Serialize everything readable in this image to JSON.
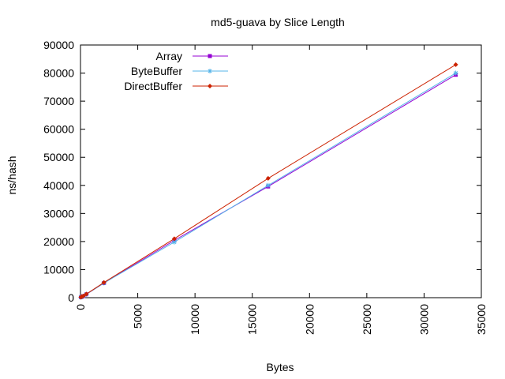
{
  "chart_data": {
    "type": "line",
    "title": "md5-guava by Slice Length",
    "xlabel": "Bytes",
    "ylabel": "ns/hash",
    "xlim": [
      0,
      35000
    ],
    "ylim": [
      0,
      90000
    ],
    "xticks": [
      0,
      5000,
      10000,
      15000,
      20000,
      25000,
      30000,
      35000
    ],
    "yticks": [
      0,
      10000,
      20000,
      30000,
      40000,
      50000,
      60000,
      70000,
      80000,
      90000
    ],
    "grid": false,
    "legend_position": "top-left",
    "series": [
      {
        "name": "Array",
        "color": "#9400d3",
        "marker": "square",
        "x": [
          32,
          64,
          128,
          256,
          512,
          2048,
          8192,
          16384,
          32768
        ],
        "y": [
          150,
          230,
          350,
          550,
          1200,
          5200,
          20400,
          39600,
          79400
        ]
      },
      {
        "name": "ByteBuffer",
        "color": "#56b4e9",
        "marker": "star",
        "x": [
          32,
          64,
          128,
          256,
          512,
          2048,
          8192,
          16384,
          32768
        ],
        "y": [
          150,
          230,
          350,
          550,
          1200,
          5200,
          19800,
          40000,
          80000
        ]
      },
      {
        "name": "DirectBuffer",
        "color": "#cc2200",
        "marker": "diamond",
        "x": [
          32,
          64,
          128,
          256,
          512,
          2048,
          8192,
          16384,
          32768
        ],
        "y": [
          160,
          250,
          380,
          600,
          1300,
          5400,
          21000,
          42500,
          83000
        ]
      }
    ]
  }
}
